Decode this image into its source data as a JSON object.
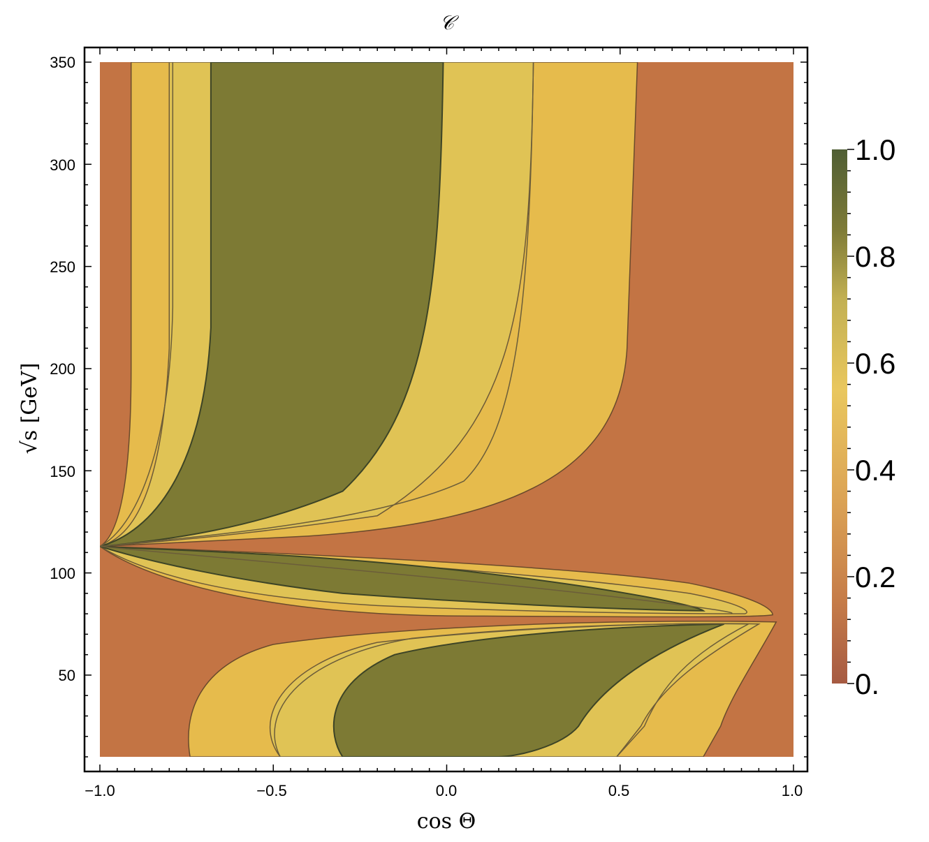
{
  "chart_data": {
    "type": "contour",
    "title": "𝒞",
    "xlabel": "cos Θ",
    "ylabel": "√s [GeV]",
    "xlim": [
      -1.0,
      1.0
    ],
    "ylim": [
      10,
      350
    ],
    "xticks": [
      "−1.0",
      "−0.5",
      "0.0",
      "0.5",
      "1.0"
    ],
    "xtick_values": [
      -1.0,
      -0.5,
      0.0,
      0.5,
      1.0
    ],
    "yticks": [
      "50",
      "100",
      "150",
      "200",
      "250",
      "300",
      "350"
    ],
    "ytick_values": [
      50,
      100,
      150,
      200,
      250,
      300,
      350
    ],
    "colorbar": {
      "range": [
        0,
        1
      ],
      "tick_labels": [
        "0.",
        "0.2",
        "0.4",
        "0.6",
        "0.8",
        "1.0"
      ],
      "tick_values": [
        0,
        0.2,
        0.4,
        0.6,
        0.8,
        1.0
      ],
      "levels": [
        0.2,
        0.4,
        0.6,
        0.8
      ],
      "colors": [
        "#a65a42",
        "#c57b48",
        "#e0b455",
        "#e7c45a",
        "#aca048",
        "#7d7a35",
        "#4f5e34"
      ]
    },
    "regions": {
      "upper_lobe": {
        "y_range": [
          116,
          350
        ],
        "cos_at_350": {
          "c020_left": -0.91,
          "c040_left": -0.8,
          "c080_left": -0.68,
          "c080_right": -0.01,
          "c040_right": 0.25,
          "c020_right": 0.55
        }
      },
      "middle_lobe": {
        "y_range": [
          76,
          113
        ],
        "tip_cos": 0.94,
        "tip_y": 79.5
      },
      "lower_lobe": {
        "y_range": [
          10,
          77
        ],
        "cos_at_10": {
          "c020_left": -0.74,
          "c040_left": -0.48,
          "c080_left": -0.3,
          "c080_right": 0.15,
          "c040_right": 0.49,
          "c020_right": 0.74
        },
        "tip_cos": 0.95,
        "tip_y": 76
      },
      "node": {
        "cos": -1.0,
        "y": 113
      }
    },
    "fill_colors": {
      "background_0_to_0.2": "#c37444",
      "band_0.2_to_0.4": "#e7bb4d",
      "band_0.4_to_0.6": "#e1c455",
      "band_0.8_to_1.0": "#7d7a34"
    }
  }
}
